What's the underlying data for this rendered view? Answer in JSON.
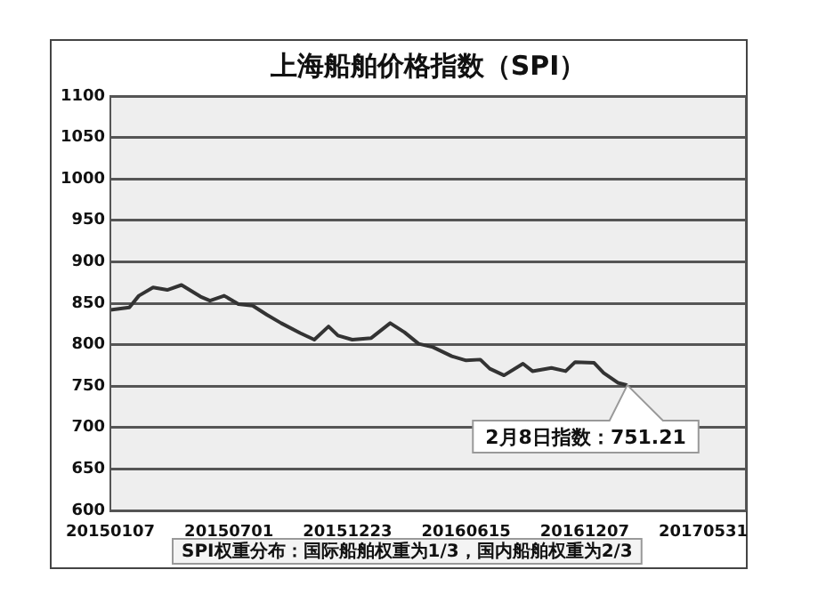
{
  "chart_data": {
    "type": "line",
    "title": "上海船舶价格指数（SPI）",
    "x": [
      "2015-01-07",
      "2015-02-04",
      "2015-02-18",
      "2015-03-11",
      "2015-04-01",
      "2015-04-22",
      "2015-05-20",
      "2015-06-03",
      "2015-06-24",
      "2015-07-15",
      "2015-08-05",
      "2015-08-26",
      "2015-09-16",
      "2015-10-14",
      "2015-11-04",
      "2015-11-25",
      "2015-12-09",
      "2015-12-30",
      "2016-01-27",
      "2016-02-24",
      "2016-03-16",
      "2016-04-06",
      "2016-04-27",
      "2016-05-25",
      "2016-06-15",
      "2016-07-06",
      "2016-07-20",
      "2016-08-10",
      "2016-09-07",
      "2016-09-21",
      "2016-10-19",
      "2016-11-09",
      "2016-11-23",
      "2016-12-21",
      "2017-01-04",
      "2017-01-25",
      "2017-02-08"
    ],
    "series": [
      {
        "color": "#333333",
        "values": [
          842,
          845,
          859,
          869,
          866,
          872,
          858,
          853,
          859,
          849,
          847,
          836,
          826,
          814,
          806,
          822,
          811,
          806,
          808,
          826,
          815,
          801,
          797,
          786,
          781,
          782,
          771,
          763,
          777,
          768,
          772,
          768,
          779,
          778,
          766,
          754,
          751.21
        ]
      }
    ],
    "xlim": [
      "2015-01-07",
      "2017-08-02"
    ],
    "xticks": [
      {
        "value": "2015-01-07",
        "label": "20150107"
      },
      {
        "value": "2015-07-01",
        "label": "20150701"
      },
      {
        "value": "2015-12-23",
        "label": "20151223"
      },
      {
        "value": "2016-06-15",
        "label": "20160615"
      },
      {
        "value": "2016-12-07",
        "label": "20161207"
      },
      {
        "value": "2017-05-31",
        "label": "20170531"
      }
    ],
    "ylim": [
      600,
      1100
    ],
    "yticks": [
      600,
      650,
      700,
      750,
      800,
      850,
      900,
      950,
      1000,
      1050,
      1100
    ],
    "grid": "y",
    "legend": false,
    "marker": "none",
    "line_style": "solid",
    "annotations": [
      {
        "text": "2月8日指数：751.21",
        "x": "2017-02-08",
        "y": 751.21
      },
      "SPI权重分布：国际船舶权重为1/3，国内船舶权重为2/3"
    ]
  }
}
